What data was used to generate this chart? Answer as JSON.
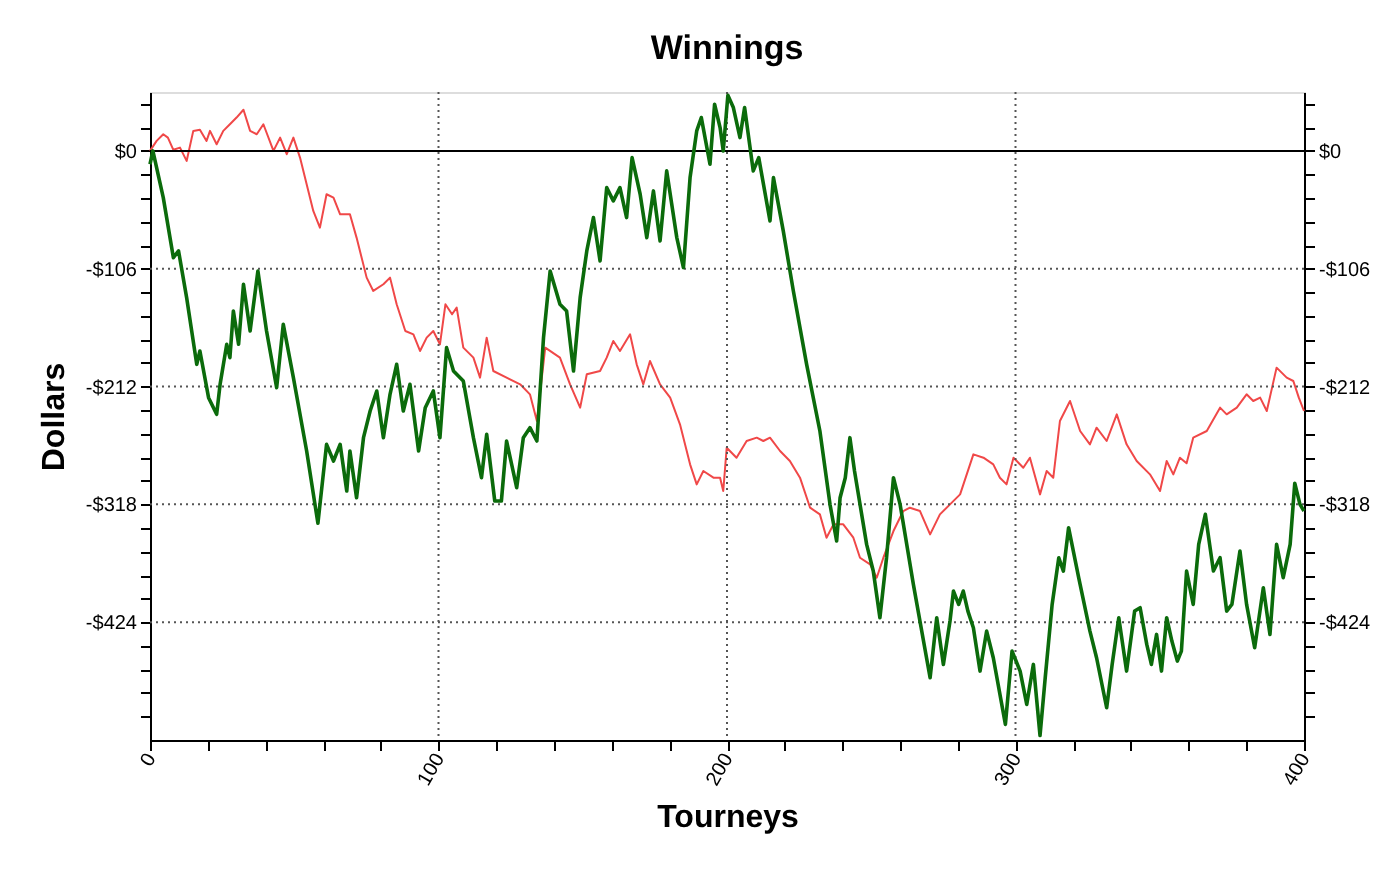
{
  "chart_data": {
    "type": "line",
    "title": "Winnings",
    "xlabel": "Tourneys",
    "ylabel": "Dollars",
    "xlim": [
      0,
      400
    ],
    "xticks": [
      0,
      {
        "value": 20,
        "label": null
      },
      {
        "value": 40,
        "label": null
      },
      {
        "value": 60,
        "label": null
      },
      {
        "value": 80,
        "label": null
      },
      100,
      {
        "value": 120,
        "label": null
      },
      {
        "value": 140,
        "label": null
      },
      {
        "value": 160,
        "label": null
      },
      {
        "value": 180,
        "label": null
      },
      200,
      {
        "value": 220,
        "label": null
      },
      {
        "value": 240,
        "label": null
      },
      {
        "value": 260,
        "label": null
      },
      {
        "value": 280,
        "label": null
      },
      300,
      {
        "value": 320,
        "label": null
      },
      {
        "value": 340,
        "label": null
      },
      {
        "value": 360,
        "label": null
      },
      {
        "value": 380,
        "label": null
      },
      400
    ],
    "ylim": [
      -530,
      53
    ],
    "yticks": [
      {
        "value": 42.4,
        "label": null
      },
      {
        "value": 21.2,
        "label": null
      },
      {
        "value": 0,
        "label": "$0"
      },
      {
        "value": -21.2,
        "label": null
      },
      {
        "value": -42.4,
        "label": null
      },
      {
        "value": -63.6,
        "label": null
      },
      {
        "value": -84.8,
        "label": null
      },
      {
        "value": -106,
        "label": "-$106"
      },
      {
        "value": -127.2,
        "label": null
      },
      {
        "value": -148.4,
        "label": null
      },
      {
        "value": -169.6,
        "label": null
      },
      {
        "value": -190.8,
        "label": null
      },
      {
        "value": -212,
        "label": "-$212"
      },
      {
        "value": -233.2,
        "label": null
      },
      {
        "value": -254.4,
        "label": null
      },
      {
        "value": -275.6,
        "label": null
      },
      {
        "value": -296.8,
        "label": null
      },
      {
        "value": -318,
        "label": "-$318"
      },
      {
        "value": -339.2,
        "label": null
      },
      {
        "value": -360.4,
        "label": null
      },
      {
        "value": -381.6,
        "label": null
      },
      {
        "value": -402.8,
        "label": null
      },
      {
        "value": -424,
        "label": "-$424"
      },
      {
        "value": -445.2,
        "label": null
      },
      {
        "value": -466.4,
        "label": null
      },
      {
        "value": -487.6,
        "label": null
      },
      {
        "value": -508.8,
        "label": null
      }
    ],
    "y2lim": [
      -530,
      53
    ],
    "y2ticks": [
      {
        "value": 42.4,
        "label": null
      },
      {
        "value": 21.2,
        "label": null
      },
      {
        "value": 0,
        "label": "$0"
      },
      {
        "value": -21.2,
        "label": null
      },
      {
        "value": -42.4,
        "label": null
      },
      {
        "value": -63.6,
        "label": null
      },
      {
        "value": -84.8,
        "label": null
      },
      {
        "value": -106,
        "label": "-$106"
      },
      {
        "value": -127.2,
        "label": null
      },
      {
        "value": -148.4,
        "label": null
      },
      {
        "value": -169.6,
        "label": null
      },
      {
        "value": -190.8,
        "label": null
      },
      {
        "value": -212,
        "label": "-$212"
      },
      {
        "value": -233.2,
        "label": null
      },
      {
        "value": -254.4,
        "label": null
      },
      {
        "value": -275.6,
        "label": null
      },
      {
        "value": -296.8,
        "label": null
      },
      {
        "value": -318,
        "label": "-$318"
      },
      {
        "value": -339.2,
        "label": null
      },
      {
        "value": -360.4,
        "label": null
      },
      {
        "value": -381.6,
        "label": null
      },
      {
        "value": -402.8,
        "label": null
      },
      {
        "value": -424,
        "label": "-$424"
      },
      {
        "value": -445.2,
        "label": null
      },
      {
        "value": -466.4,
        "label": null
      },
      {
        "value": -487.6,
        "label": null
      },
      {
        "value": -508.8,
        "label": null
      }
    ],
    "grid": true,
    "legend": false,
    "marker": "none",
    "line_style": "solid",
    "ref_lines": [
      {
        "axis": "y",
        "value": 0,
        "color": "#000000",
        "line_style": "solid"
      }
    ],
    "series": [
      {
        "color": "#f04848",
        "x": [
          0,
          2.3,
          4.6,
          6.2,
          8.1,
          10.4,
          12.7,
          15,
          17.3,
          19.6,
          20.8,
          23.1,
          25.4,
          27.7,
          30,
          32.4,
          34.7,
          37,
          39.3,
          42.8,
          45.1,
          47.4,
          49.7,
          52,
          56.6,
          58.9,
          61.2,
          63.6,
          65.9,
          69.3,
          71.6,
          75.1,
          77.4,
          80.9,
          83.2,
          85.5,
          88.5,
          91.3,
          93.6,
          95.9,
          98.2,
          100.5,
          102.4,
          104.7,
          106.3,
          108.6,
          112.1,
          114.4,
          116.7,
          119,
          123.6,
          128.3,
          131.7,
          134.1,
          137,
          142.1,
          145.6,
          149.1,
          151.4,
          156,
          158.3,
          160.6,
          162.9,
          166.4,
          168.7,
          171,
          173.3,
          176.8,
          180.3,
          183.7,
          187.2,
          189.5,
          191.8,
          195.3,
          197.6,
          198.7,
          199.9,
          203.3,
          206.8,
          210.3,
          212.6,
          214.9,
          218.4,
          221.8,
          225.3,
          228.8,
          232.2,
          234.5,
          236.9,
          240.3,
          243.8,
          246.1,
          249.6,
          251.9,
          254.2,
          257.7,
          261.1,
          263.4,
          266.9,
          270.4,
          273.8,
          277.3,
          280.8,
          285.4,
          288.9,
          292.3,
          294.6,
          296.9,
          299.3,
          302.7,
          305,
          308.5,
          310.8,
          313.1,
          315.4,
          318.9,
          322.4,
          325.8,
          328.1,
          331.6,
          335.1,
          338.5,
          342,
          346.6,
          350.1,
          352.4,
          354.7,
          357,
          359.3,
          361.6,
          366.3,
          370.9,
          373.2,
          376.7,
          380.1,
          382.4,
          384.8,
          387.1,
          390.5,
          394,
          396.3,
          398.2,
          400
        ],
        "values": [
          0,
          9,
          15,
          12,
          1,
          3,
          -9,
          18,
          19,
          9,
          18,
          6,
          18,
          24,
          30,
          37,
          18,
          15,
          24,
          0,
          12,
          -3,
          12,
          -6,
          -54,
          -69,
          -39,
          -42,
          -57,
          -57,
          -78,
          -114,
          -126,
          -120,
          -114,
          -138,
          -162,
          -165,
          -180,
          -168,
          -162,
          -174,
          -138,
          -147,
          -141,
          -177,
          -186,
          -204,
          -168,
          -198,
          -204,
          -210,
          -219,
          -243,
          -177,
          -186,
          -210,
          -231,
          -201,
          -198,
          -186,
          -171,
          -180,
          -165,
          -192,
          -210,
          -189,
          -210,
          -222,
          -246,
          -282,
          -300,
          -288,
          -294,
          -294,
          -306,
          -267,
          -276,
          -261,
          -258,
          -261,
          -258,
          -270,
          -279,
          -294,
          -321,
          -327,
          -348,
          -336,
          -336,
          -348,
          -366,
          -372,
          -384,
          -366,
          -342,
          -324,
          -321,
          -324,
          -345,
          -327,
          -318,
          -309,
          -273,
          -276,
          -282,
          -294,
          -300,
          -276,
          -285,
          -276,
          -309,
          -288,
          -294,
          -243,
          -225,
          -252,
          -264,
          -249,
          -261,
          -237,
          -264,
          -279,
          -291,
          -306,
          -279,
          -291,
          -276,
          -281,
          -258,
          -252,
          -231,
          -237,
          -231,
          -219,
          -225,
          -222,
          -234,
          -195,
          -204,
          -207,
          -222,
          -234
        ]
      },
      {
        "color": "#0b6b0b",
        "x": [
          0,
          1,
          4.6,
          8.1,
          9.9,
          12.7,
          16.2,
          17.3,
          20.3,
          23.1,
          24.3,
          26.6,
          27.7,
          28.9,
          30.7,
          32.4,
          34.7,
          37.4,
          40.4,
          43.9,
          46.2,
          49.7,
          54.3,
          58.2,
          61.2,
          63.6,
          65.9,
          68.2,
          69.3,
          71.6,
          74,
          76.3,
          78.6,
          80.9,
          83.2,
          85.5,
          87.8,
          90.1,
          93.1,
          95.4,
          98.2,
          100.5,
          102.8,
          105.2,
          108.6,
          112.1,
          114.9,
          116.7,
          119.5,
          121.8,
          123.6,
          127.1,
          129.4,
          131.7,
          134.1,
          136.4,
          138.7,
          142.1,
          144.4,
          146.8,
          149.1,
          151.4,
          153.7,
          156,
          158.3,
          160.6,
          162.9,
          165.2,
          167.1,
          169.9,
          172.2,
          174.5,
          176.8,
          179.1,
          182.6,
          184.9,
          187.2,
          189.5,
          191.1,
          194.1,
          195.7,
          197.6,
          198.7,
          200.3,
          202.2,
          204.5,
          206.1,
          209.1,
          211,
          214.9,
          216.1,
          219.5,
          223,
          227.6,
          232.2,
          235.7,
          238,
          239.2,
          241,
          242.6,
          244.2,
          248.4,
          250.7,
          253,
          255.3,
          257.7,
          260,
          264.6,
          270.4,
          272.7,
          275,
          277.3,
          278.5,
          280.3,
          281.9,
          283.5,
          285.4,
          287.7,
          290,
          292.3,
          296.5,
          298.8,
          301.6,
          303.9,
          306.2,
          308.5,
          310.3,
          312.7,
          315,
          316.6,
          318.4,
          321.9,
          325.8,
          328.1,
          331.6,
          333.5,
          335.8,
          338.5,
          341.3,
          343.2,
          345.5,
          347.1,
          348.9,
          350.6,
          352.4,
          354.2,
          356.1,
          357.5,
          359.3,
          361.6,
          363.5,
          365.8,
          368.6,
          370.9,
          373.2,
          375,
          377.8,
          380.1,
          382.9,
          385.9,
          388.2,
          390.5,
          392.8,
          395.2,
          396.8,
          398.6,
          400
        ],
        "values": [
          -12,
          0,
          -42,
          -96,
          -90,
          -132,
          -192,
          -180,
          -222,
          -237,
          -210,
          -174,
          -186,
          -144,
          -174,
          -120,
          -162,
          -108,
          -162,
          -213,
          -156,
          -204,
          -270,
          -335,
          -264,
          -279,
          -264,
          -306,
          -270,
          -312,
          -258,
          -234,
          -216,
          -258,
          -219,
          -192,
          -234,
          -210,
          -270,
          -231,
          -216,
          -258,
          -177,
          -198,
          -207,
          -258,
          -294,
          -255,
          -315,
          -315,
          -261,
          -303,
          -258,
          -249,
          -261,
          -168,
          -108,
          -138,
          -144,
          -198,
          -132,
          -90,
          -60,
          -99,
          -33,
          -45,
          -33,
          -60,
          -6,
          -39,
          -78,
          -36,
          -81,
          -18,
          -78,
          -105,
          -24,
          18,
          30,
          -12,
          42,
          21,
          0,
          50,
          39,
          12,
          39,
          -18,
          -6,
          -63,
          -24,
          -72,
          -126,
          -192,
          -252,
          -318,
          -351,
          -312,
          -294,
          -258,
          -288,
          -354,
          -378,
          -420,
          -366,
          -294,
          -318,
          -390,
          -474,
          -420,
          -462,
          -423,
          -396,
          -408,
          -396,
          -414,
          -429,
          -468,
          -432,
          -456,
          -516,
          -450,
          -468,
          -498,
          -462,
          -526,
          -474,
          -408,
          -366,
          -378,
          -339,
          -384,
          -432,
          -456,
          -501,
          -462,
          -420,
          -468,
          -414,
          -411,
          -444,
          -462,
          -435,
          -468,
          -420,
          -441,
          -459,
          -450,
          -378,
          -408,
          -354,
          -327,
          -378,
          -366,
          -414,
          -408,
          -360,
          -408,
          -447,
          -393,
          -435,
          -354,
          -384,
          -354,
          -299,
          -318,
          -324
        ]
      }
    ]
  }
}
